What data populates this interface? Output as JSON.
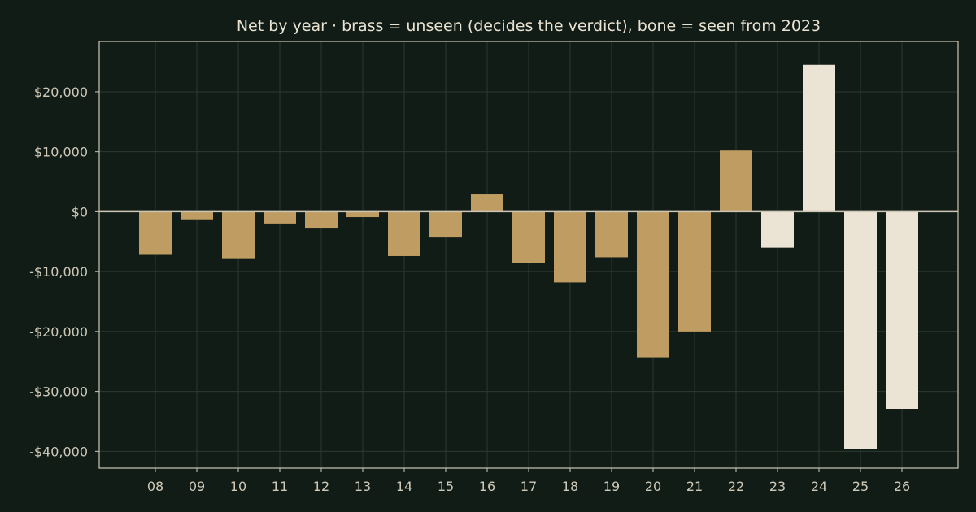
{
  "chart_data": {
    "type": "bar",
    "title": "Net by year  ·  brass = unseen (decides the verdict), bone = seen from 2023",
    "xlabel": "",
    "ylabel": "",
    "categories": [
      "08",
      "09",
      "10",
      "11",
      "12",
      "13",
      "14",
      "15",
      "16",
      "17",
      "18",
      "19",
      "20",
      "21",
      "22",
      "23",
      "24",
      "25",
      "26"
    ],
    "values": [
      -7200,
      -1400,
      -7900,
      -2100,
      -2800,
      -900,
      -7400,
      -4300,
      2900,
      -8600,
      -11800,
      -7600,
      -24300,
      -20000,
      10200,
      -6000,
      24500,
      -39600,
      -32900
    ],
    "groups": [
      "unseen",
      "unseen",
      "unseen",
      "unseen",
      "unseen",
      "unseen",
      "unseen",
      "unseen",
      "unseen",
      "unseen",
      "unseen",
      "unseen",
      "unseen",
      "unseen",
      "unseen",
      "seen",
      "seen",
      "seen",
      "seen"
    ],
    "group_colors": {
      "unseen": "#bf9c62",
      "seen": "#ebe4d4"
    },
    "ylim": [
      -42800,
      28400
    ],
    "yticks": [
      -40000,
      -30000,
      -20000,
      -10000,
      0,
      10000,
      20000
    ],
    "ytick_labels": [
      "-$40,000",
      "-$30,000",
      "-$20,000",
      "-$10,000",
      "$0",
      "$10,000",
      "$20,000"
    ],
    "grid": true,
    "legend": "none"
  }
}
